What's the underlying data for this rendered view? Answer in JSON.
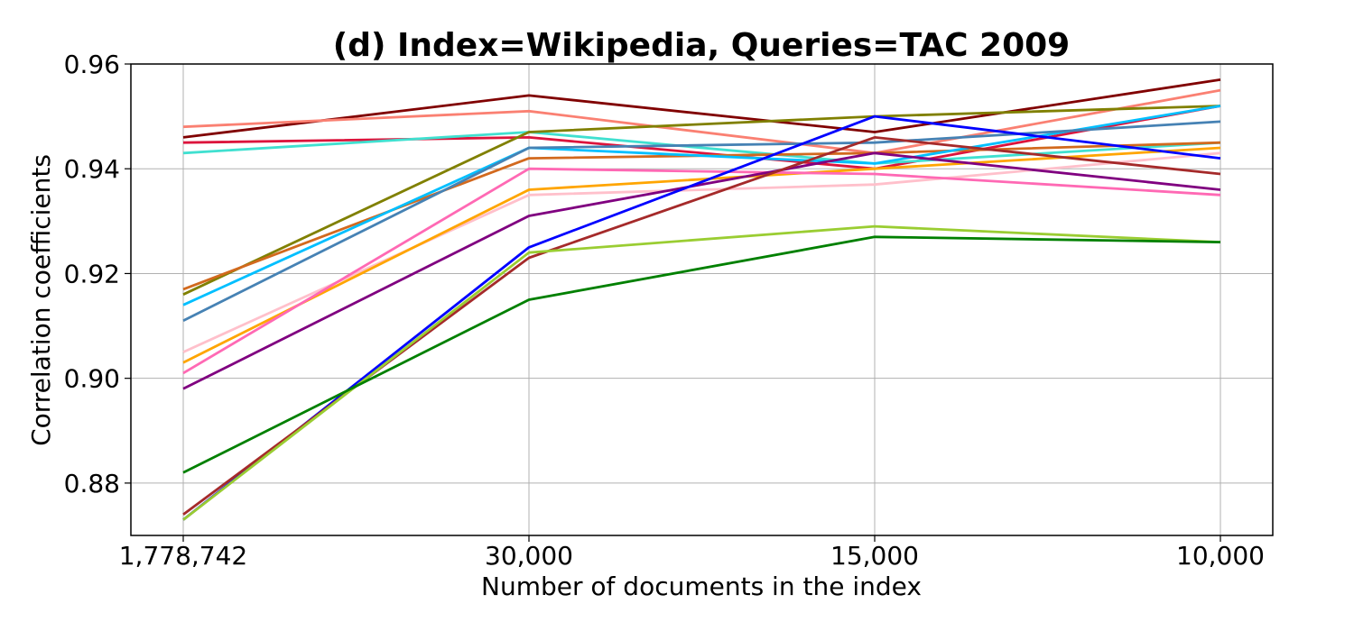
{
  "chart_data": {
    "type": "line",
    "title": "(d) Index=Wikipedia, Queries=TAC 2009",
    "xlabel": "Number of documents in the index",
    "ylabel": "Correlation coefficients",
    "categories": [
      "1,778,742",
      "30,000",
      "15,000",
      "10,000"
    ],
    "ylim": [
      0.87,
      0.96
    ],
    "yticks": [
      0.88,
      0.9,
      0.92,
      0.94,
      0.96
    ],
    "ytick_labels": [
      "0.88",
      "0.90",
      "0.92",
      "0.94",
      "0.96"
    ],
    "grid": true,
    "series": [
      {
        "color": "#800000",
        "values": [
          0.946,
          0.954,
          0.947,
          0.957
        ]
      },
      {
        "color": "#fa8072",
        "values": [
          0.948,
          0.951,
          0.943,
          0.955
        ]
      },
      {
        "color": "#dc143c",
        "values": [
          0.945,
          0.946,
          0.94,
          0.952
        ]
      },
      {
        "color": "#40e0d0",
        "values": [
          0.943,
          0.947,
          0.941,
          0.945
        ]
      },
      {
        "color": "#808000",
        "values": [
          0.916,
          0.947,
          0.95,
          0.952
        ]
      },
      {
        "color": "#d2691e",
        "values": [
          0.917,
          0.942,
          0.943,
          0.945
        ]
      },
      {
        "color": "#00bfff",
        "values": [
          0.914,
          0.944,
          0.941,
          0.952
        ]
      },
      {
        "color": "#4682b4",
        "values": [
          0.911,
          0.944,
          0.945,
          0.949
        ]
      },
      {
        "color": "#ffc0cb",
        "values": [
          0.905,
          0.935,
          0.937,
          0.943
        ]
      },
      {
        "color": "#ffa500",
        "values": [
          0.903,
          0.936,
          0.94,
          0.944
        ]
      },
      {
        "color": "#ff69b4",
        "values": [
          0.901,
          0.94,
          0.939,
          0.935
        ]
      },
      {
        "color": "#800080",
        "values": [
          0.898,
          0.931,
          0.943,
          0.936
        ]
      },
      {
        "color": "#0000ff",
        "values": [
          0.873,
          0.925,
          0.95,
          0.942
        ]
      },
      {
        "color": "#a52a2a",
        "values": [
          0.874,
          0.923,
          0.946,
          0.939
        ]
      },
      {
        "color": "#9acd32",
        "values": [
          0.873,
          0.924,
          0.929,
          0.926
        ]
      },
      {
        "color": "#008000",
        "values": [
          0.882,
          0.915,
          0.927,
          0.926
        ]
      }
    ]
  }
}
